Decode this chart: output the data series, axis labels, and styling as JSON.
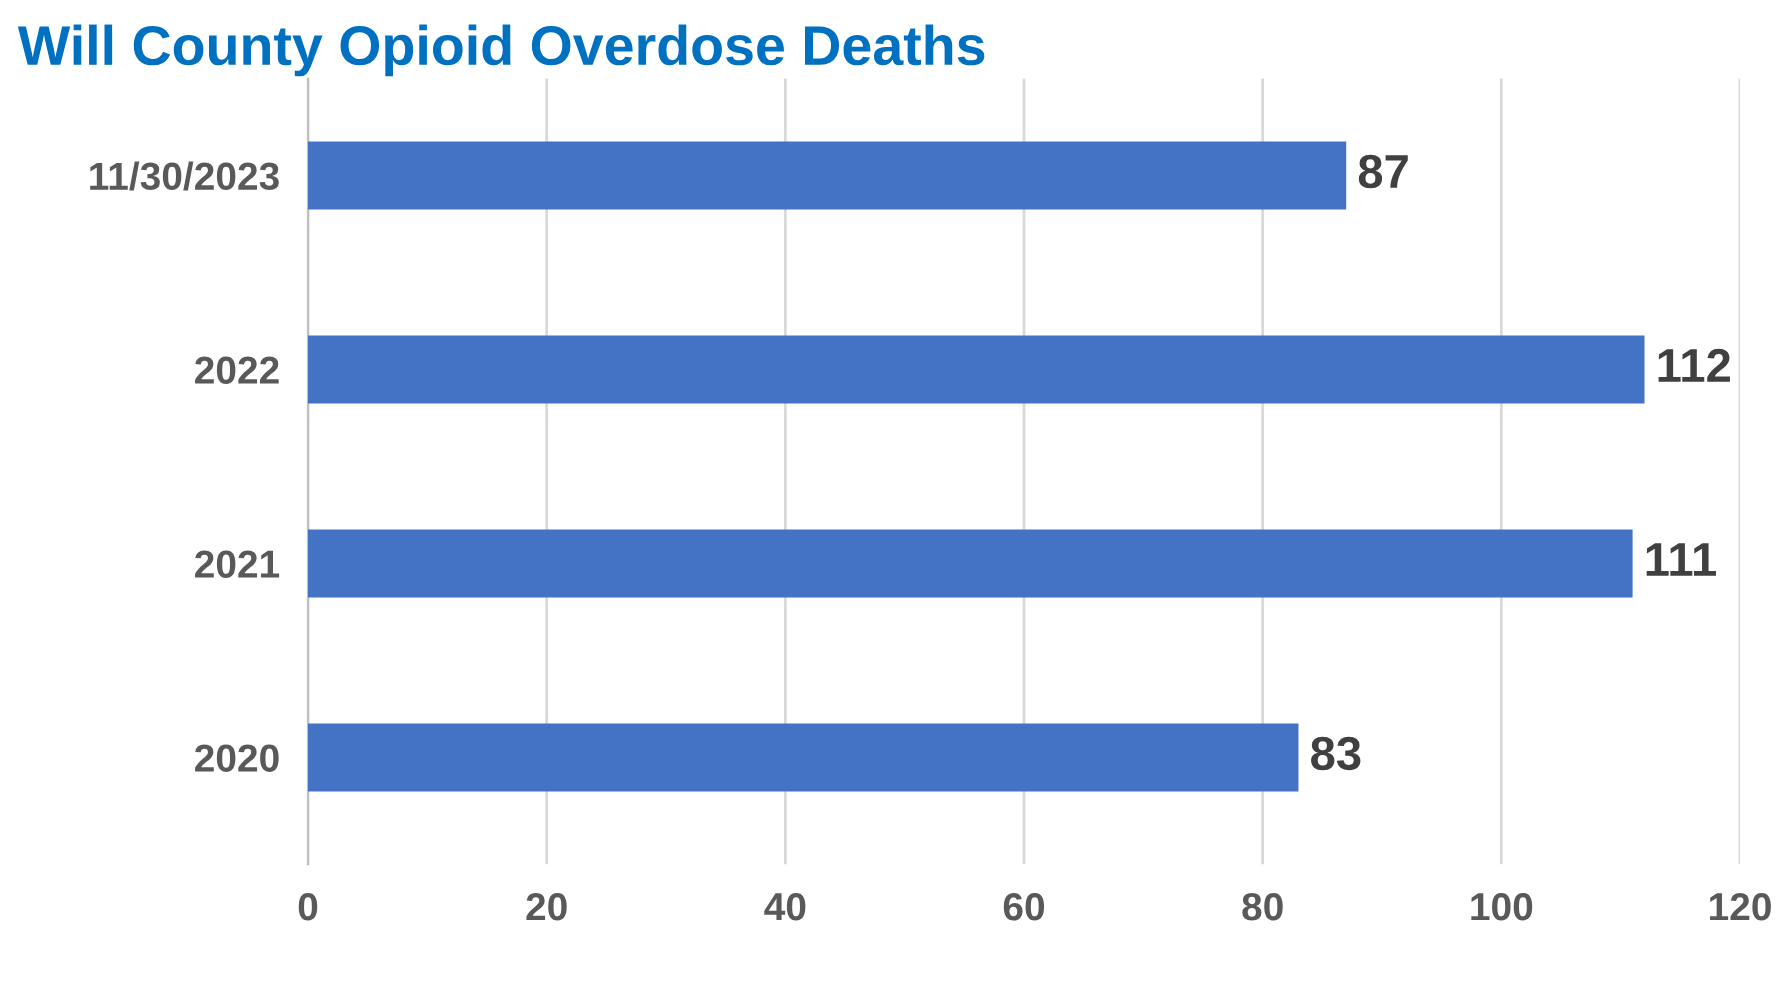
{
  "chart_data": {
    "type": "bar",
    "orientation": "horizontal",
    "title": "Will County Opioid Overdose Deaths",
    "categories": [
      "11/30/2023",
      "2022",
      "2021",
      "2020"
    ],
    "series": [
      {
        "color": "#4472c4",
        "values": [
          87,
          112,
          111,
          83
        ]
      }
    ],
    "xlim": [
      0,
      120
    ],
    "xticks": [
      0,
      20,
      40,
      60,
      80,
      100,
      120
    ],
    "grid": "x",
    "data_labels": true
  }
}
